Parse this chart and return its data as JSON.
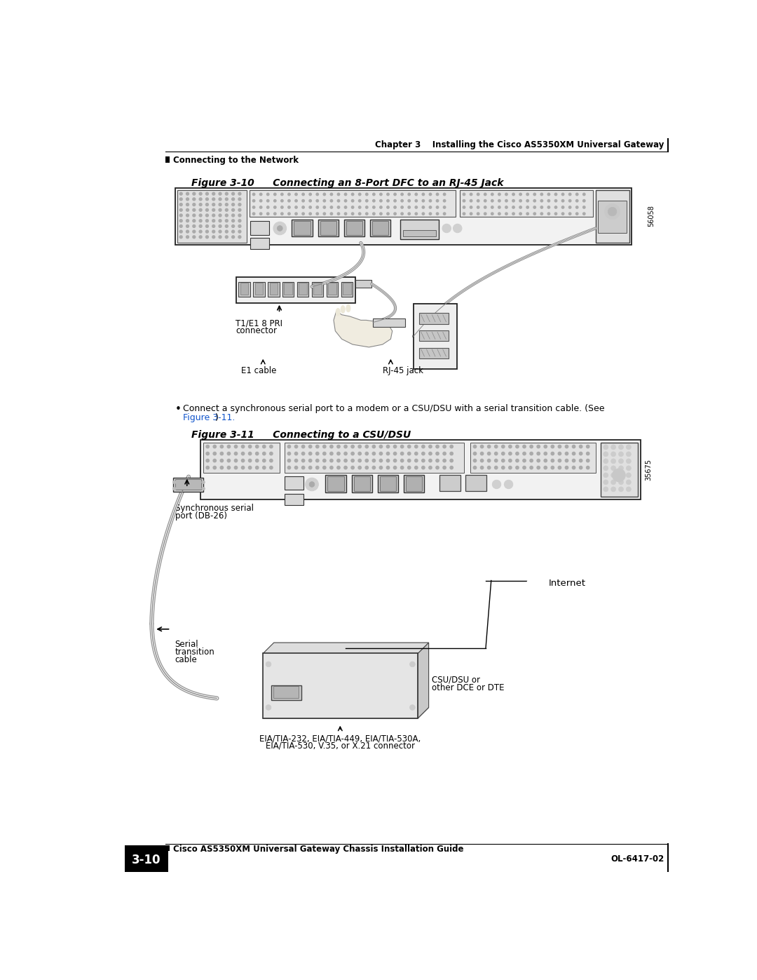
{
  "bg_color": "#ffffff",
  "text_color": "#000000",
  "link_color": "#1155CC",
  "header_chapter_text": "Chapter 3    Installing the Cisco AS5350XM Universal Gateway",
  "header_section_text": "Connecting to the Network",
  "footer_guide_text": "Cisco AS5350XM Universal Gateway Chassis Installation Guide",
  "footer_page_text": "3-10",
  "footer_doc_text": "OL-6417-02",
  "fig10_label": "Figure 3-10",
  "fig10_title": "      Connecting an 8-Port DFC to an RJ-45 Jack",
  "fig11_label": "Figure 3-11",
  "fig11_title": "      Connecting to a CSU/DSU",
  "bullet_line1": "Connect a synchronous serial port to a modem or a CSU/DSU with a serial transition cable. (See",
  "bullet_line2": "Figure 3-11.",
  "bullet_line2_suffix": ")",
  "label_t1e1_line1": "T1/E1 8 PRI",
  "label_t1e1_line2": "connector",
  "label_e1cable": "E1 cable",
  "label_rj45": "RJ-45 jack",
  "label_sync_serial_line1": "Synchronous serial",
  "label_sync_serial_line2": "port (DB-26)",
  "label_serial_trans_line1": "Serial",
  "label_serial_trans_line2": "transition",
  "label_serial_trans_line3": "cable",
  "label_internet": "Internet",
  "label_csu_dsu_line1": "CSU/DSU or",
  "label_csu_dsu_line2": "other DCE or DTE",
  "label_eia_line1": "EIA/TIA-232, EIA/TIA-449, EIA/TIA-530A,",
  "label_eia_line2": "EIA/TIA-530, V.35, or X.21 connector",
  "sidebar_56058": "56058",
  "sidebar_39675": "35675"
}
